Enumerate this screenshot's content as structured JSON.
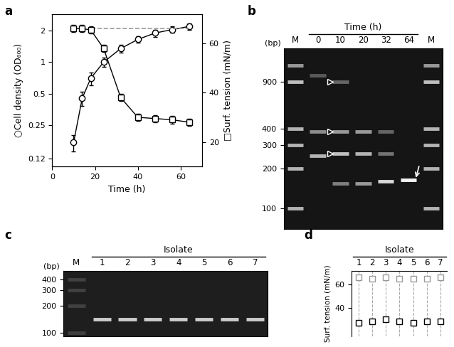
{
  "chart_data": [
    {
      "panel": "a",
      "type": "line",
      "xlabel": "Time (h)",
      "ylabel": "○Cell density (OD₆₀₀)",
      "y2label": "□Surf. tension (mN/m)",
      "x": [
        10,
        14,
        18,
        24,
        32,
        40,
        48,
        56,
        64
      ],
      "log": "y",
      "xlim": [
        0,
        70
      ],
      "xticks": [
        0,
        20,
        40,
        60
      ],
      "ylim": [
        0.1,
        2.9
      ],
      "yticks": [
        0.12,
        0.25,
        0.5,
        1,
        2
      ],
      "y2lim": [
        10,
        72
      ],
      "y2ticks": [
        20,
        40,
        60
      ],
      "series": [
        {
          "color": "#000000",
          "marker": "circle",
          "line_style": "solid",
          "values": [
            0.17,
            0.45,
            0.7,
            1.0,
            1.35,
            1.65,
            1.9,
            2.05,
            2.2
          ],
          "errors": [
            0.03,
            0.07,
            0.1,
            0.1,
            0.12,
            0.12,
            0.15,
            0.15,
            0.15
          ]
        },
        {
          "axis": "y2",
          "color": "#000000",
          "marker": "square",
          "line_style": "solid",
          "values": [
            66,
            66,
            65.5,
            58,
            38,
            30,
            29.5,
            29,
            28
          ],
          "errors": [
            1.5,
            1.5,
            1.5,
            1.5,
            1.5,
            1.5,
            1.5,
            1.5,
            1.5
          ]
        }
      ],
      "reference_line": {
        "axis": "y2",
        "value": 66,
        "x": [
          18,
          64
        ],
        "color": "#999999",
        "line_style": "dashed"
      }
    },
    {
      "panel": "b",
      "type": "gel",
      "header": "Time (h)",
      "ylabel": "(bp)",
      "log": "y",
      "ylim": [
        70,
        1600
      ],
      "yticks": [
        100,
        200,
        300,
        400,
        900
      ],
      "color": "#151515",
      "lanes": [
        {
          "label": "M",
          "ladder": true,
          "bands": [
            {
              "bp": 1200,
              "intensity": 0.6
            },
            {
              "bp": 900,
              "intensity": 0.75
            },
            {
              "bp": 400,
              "intensity": 0.7
            },
            {
              "bp": 300,
              "intensity": 0.7
            },
            {
              "bp": 200,
              "intensity": 0.7
            },
            {
              "bp": 100,
              "intensity": 0.7
            }
          ]
        },
        {
          "label": "0",
          "ladder": false,
          "bands": [
            {
              "bp": 1000,
              "intensity": 0.35
            },
            {
              "bp": 380,
              "intensity": 0.55
            },
            {
              "bp": 250,
              "intensity": 0.7
            }
          ]
        },
        {
          "label": "10",
          "ladder": false,
          "bands": [
            {
              "bp": 900,
              "intensity": 0.4
            },
            {
              "bp": 380,
              "intensity": 0.6
            },
            {
              "bp": 260,
              "intensity": 0.75
            },
            {
              "bp": 155,
              "intensity": 0.5
            }
          ]
        },
        {
          "label": "20",
          "ladder": false,
          "bands": [
            {
              "bp": 380,
              "intensity": 0.6
            },
            {
              "bp": 260,
              "intensity": 0.7
            },
            {
              "bp": 155,
              "intensity": 0.6
            }
          ]
        },
        {
          "label": "32",
          "ladder": false,
          "bands": [
            {
              "bp": 380,
              "intensity": 0.4
            },
            {
              "bp": 260,
              "intensity": 0.45
            },
            {
              "bp": 160,
              "intensity": 0.85
            }
          ]
        },
        {
          "label": "64",
          "ladder": false,
          "bands": [
            {
              "bp": 165,
              "intensity": 0.95
            }
          ]
        },
        {
          "label": "M",
          "ladder": true,
          "bands": [
            {
              "bp": 1200,
              "intensity": 0.6
            },
            {
              "bp": 900,
              "intensity": 0.75
            },
            {
              "bp": 400,
              "intensity": 0.7
            },
            {
              "bp": 300,
              "intensity": 0.7
            },
            {
              "bp": 200,
              "intensity": 0.7
            },
            {
              "bp": 100,
              "intensity": 0.7
            }
          ]
        }
      ],
      "arrowheads": [
        {
          "lane": "10",
          "bp": 900
        },
        {
          "lane": "10",
          "bp": 380
        },
        {
          "lane": "10",
          "bp": 260
        }
      ],
      "arrows": [
        {
          "lane": "64",
          "bp": 165
        }
      ]
    },
    {
      "panel": "c",
      "type": "gel",
      "header": "Isolate",
      "ylabel": "(bp)",
      "log": "y",
      "ylim": [
        90,
        500
      ],
      "yticks": [
        100,
        200,
        300,
        400
      ],
      "color": "#1e1e1e",
      "lanes": [
        {
          "label": "M",
          "ladder": true,
          "bands": [
            {
              "bp": 400,
              "intensity": 0.25
            },
            {
              "bp": 300,
              "intensity": 0.25
            },
            {
              "bp": 200,
              "intensity": 0.25
            },
            {
              "bp": 100,
              "intensity": 0.25
            }
          ]
        },
        {
          "label": "1",
          "ladder": false,
          "bands": [
            {
              "bp": 140,
              "intensity": 0.8
            }
          ]
        },
        {
          "label": "2",
          "ladder": false,
          "bands": [
            {
              "bp": 140,
              "intensity": 0.8
            }
          ]
        },
        {
          "label": "3",
          "ladder": false,
          "bands": [
            {
              "bp": 140,
              "intensity": 0.8
            }
          ]
        },
        {
          "label": "4",
          "ladder": false,
          "bands": [
            {
              "bp": 140,
              "intensity": 0.8
            }
          ]
        },
        {
          "label": "5",
          "ladder": false,
          "bands": [
            {
              "bp": 140,
              "intensity": 0.8
            }
          ]
        },
        {
          "label": "6",
          "ladder": false,
          "bands": [
            {
              "bp": 140,
              "intensity": 0.8
            }
          ]
        },
        {
          "label": "7",
          "ladder": false,
          "bands": [
            {
              "bp": 140,
              "intensity": 0.8
            }
          ]
        }
      ]
    },
    {
      "panel": "d",
      "type": "scatter",
      "header": "Isolate",
      "ylabel": "Surf. tension (mN/m)",
      "categories": [
        "1",
        "2",
        "3",
        "4",
        "5",
        "6",
        "7"
      ],
      "ylim": [
        15,
        72
      ],
      "yticks": [
        40,
        60
      ],
      "grid": true,
      "series": [
        {
          "color": "#999999",
          "marker": "square",
          "values": [
            66,
            65,
            66,
            65,
            65,
            65,
            66
          ],
          "errors": [
            2,
            2,
            2,
            2,
            2,
            2,
            2
          ]
        },
        {
          "color": "#000000",
          "marker": "square",
          "values": [
            27,
            28,
            30,
            28,
            27,
            28,
            28
          ],
          "errors": [
            2,
            2,
            2,
            2,
            2,
            2,
            2
          ]
        }
      ]
    }
  ]
}
